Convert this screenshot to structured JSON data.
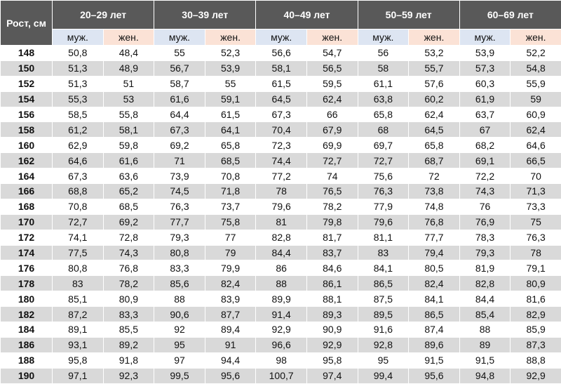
{
  "header": {
    "corner_label": "Рост, см",
    "age_groups": [
      "20–29 лет",
      "30–39 лет",
      "40–49 лет",
      "50–59 лет",
      "60–69 лет"
    ],
    "male_label": "муж.",
    "female_label": "жен."
  },
  "rows": [
    {
      "height": "148",
      "values": [
        "50,8",
        "48,4",
        "55",
        "52,3",
        "56,6",
        "54,7",
        "56",
        "53,2",
        "53,9",
        "52,2"
      ]
    },
    {
      "height": "150",
      "values": [
        "51,3",
        "48,9",
        "56,7",
        "53,9",
        "58,1",
        "56,5",
        "58",
        "55,7",
        "57,3",
        "54,8"
      ]
    },
    {
      "height": "152",
      "values": [
        "51,3",
        "51",
        "58,7",
        "55",
        "61,5",
        "59,5",
        "61,1",
        "57,6",
        "60,3",
        "55,9"
      ]
    },
    {
      "height": "154",
      "values": [
        "55,3",
        "53",
        "61,6",
        "59,1",
        "64,5",
        "62,4",
        "63,8",
        "60,2",
        "61,9",
        "59"
      ]
    },
    {
      "height": "156",
      "values": [
        "58,5",
        "55,8",
        "64,4",
        "61,5",
        "67,3",
        "66",
        "65,8",
        "62,4",
        "63,7",
        "60,9"
      ]
    },
    {
      "height": "158",
      "values": [
        "61,2",
        "58,1",
        "67,3",
        "64,1",
        "70,4",
        "67,9",
        "68",
        "64,5",
        "67",
        "62,4"
      ]
    },
    {
      "height": "160",
      "values": [
        "62,9",
        "59,8",
        "69,2",
        "65,8",
        "72,3",
        "69,9",
        "69,7",
        "65,8",
        "68,2",
        "64,6"
      ]
    },
    {
      "height": "162",
      "values": [
        "64,6",
        "61,6",
        "71",
        "68,5",
        "74,4",
        "72,7",
        "72,7",
        "68,7",
        "69,1",
        "66,5"
      ]
    },
    {
      "height": "164",
      "values": [
        "67,3",
        "63,6",
        "73,9",
        "70,8",
        "77,2",
        "74",
        "75,6",
        "72",
        "72,2",
        "70"
      ]
    },
    {
      "height": "166",
      "values": [
        "68,8",
        "65,2",
        "74,5",
        "71,8",
        "78",
        "76,5",
        "76,3",
        "73,8",
        "74,3",
        "71,3"
      ]
    },
    {
      "height": "168",
      "values": [
        "70,8",
        "68,5",
        "76,3",
        "73,7",
        "79,6",
        "78,2",
        "77,9",
        "74,8",
        "76",
        "73,3"
      ]
    },
    {
      "height": "170",
      "values": [
        "72,7",
        "69,2",
        "77,7",
        "75,8",
        "81",
        "79,8",
        "79,6",
        "76,8",
        "76,9",
        "75"
      ]
    },
    {
      "height": "172",
      "values": [
        "74,1",
        "72,8",
        "79,3",
        "77",
        "82,8",
        "81,7",
        "81,1",
        "77,7",
        "78,3",
        "76,3"
      ]
    },
    {
      "height": "174",
      "values": [
        "77,5",
        "74,3",
        "80,8",
        "79",
        "84,4",
        "83,7",
        "83",
        "79,4",
        "79,3",
        "78"
      ]
    },
    {
      "height": "176",
      "values": [
        "80,8",
        "76,8",
        "83,3",
        "79,9",
        "86",
        "84,6",
        "84,1",
        "80,5",
        "81,9",
        "79,1"
      ]
    },
    {
      "height": "178",
      "values": [
        "83",
        "78,2",
        "85,6",
        "82,4",
        "88",
        "86,1",
        "86,5",
        "82,4",
        "82,8",
        "80,9"
      ]
    },
    {
      "height": "180",
      "values": [
        "85,1",
        "80,9",
        "88",
        "83,9",
        "89,9",
        "88,1",
        "87,5",
        "84,1",
        "84,4",
        "81,6"
      ]
    },
    {
      "height": "182",
      "values": [
        "87,2",
        "83,3",
        "90,6",
        "87,7",
        "91,4",
        "89,3",
        "89,5",
        "86,5",
        "85,4",
        "82,9"
      ]
    },
    {
      "height": "184",
      "values": [
        "89,1",
        "85,5",
        "92",
        "89,4",
        "92,9",
        "90,9",
        "91,6",
        "87,4",
        "88",
        "85,9"
      ]
    },
    {
      "height": "186",
      "values": [
        "93,1",
        "89,2",
        "95",
        "91",
        "96,6",
        "92,9",
        "92,8",
        "89,6",
        "89",
        "87,3"
      ]
    },
    {
      "height": "188",
      "values": [
        "95,8",
        "91,8",
        "97",
        "94,4",
        "98",
        "95,8",
        "95",
        "91,5",
        "91,5",
        "88,8"
      ]
    },
    {
      "height": "190",
      "values": [
        "97,1",
        "92,3",
        "99,5",
        "95,6",
        "100,7",
        "97,4",
        "99,4",
        "95,6",
        "94,8",
        "92,9"
      ]
    }
  ]
}
